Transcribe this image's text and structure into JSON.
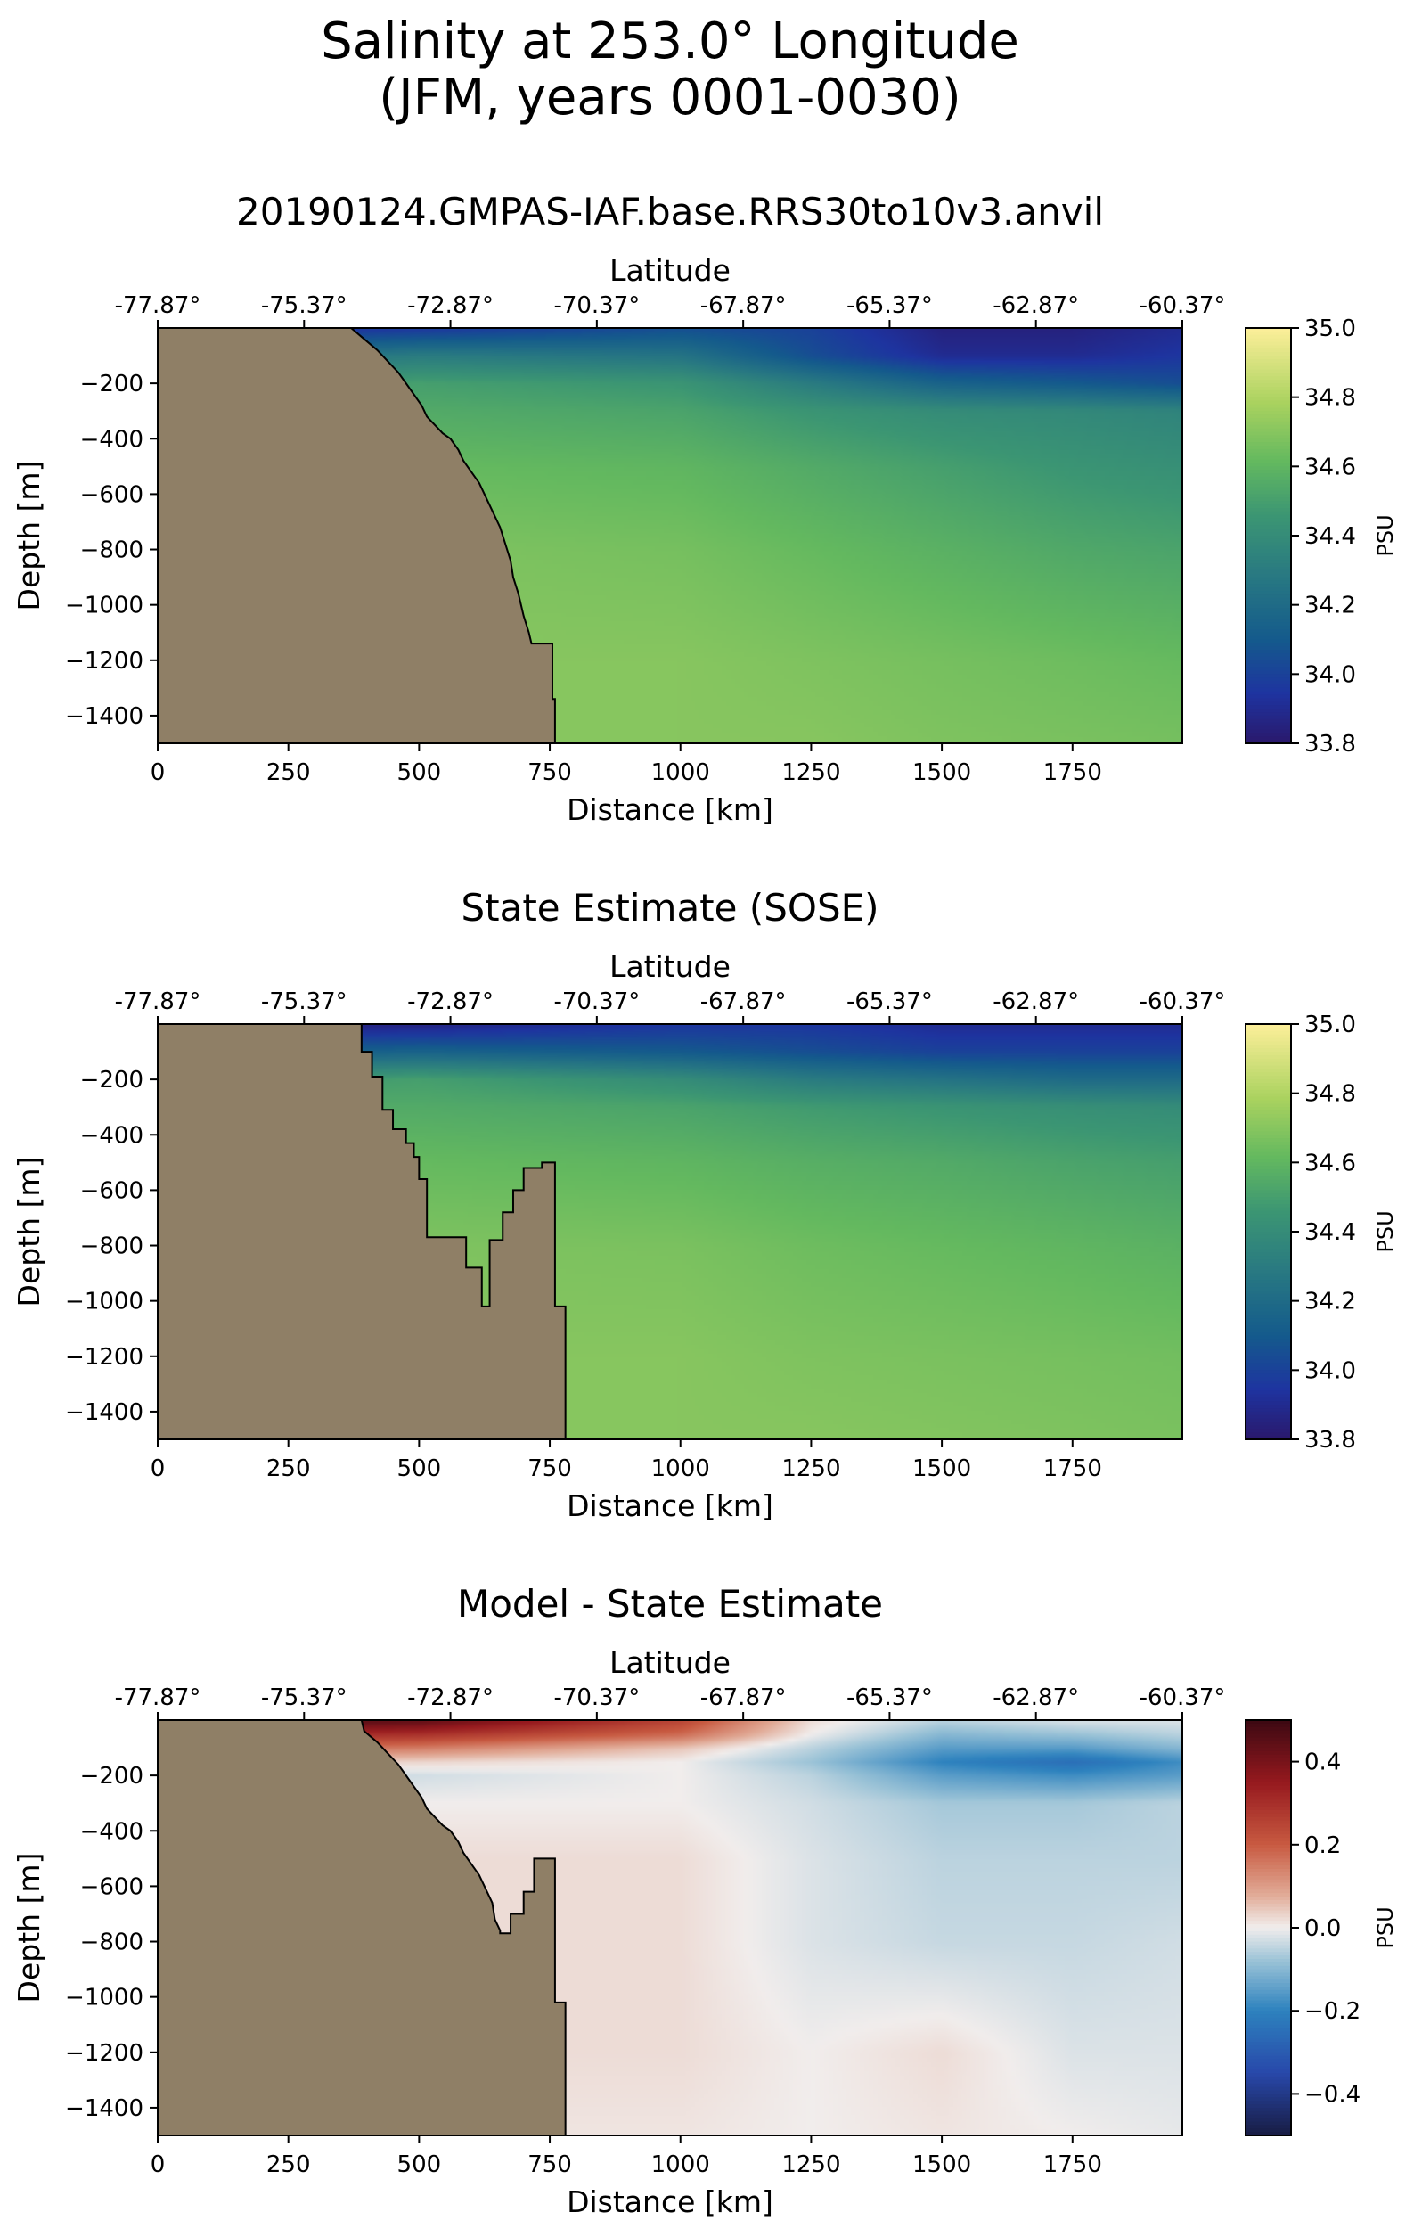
{
  "figure": {
    "title_line1": "Salinity at 253.0° Longitude",
    "title_line2": "(JFM, years 0001-0030)"
  },
  "chart_data": [
    {
      "type": "heatmap",
      "title": "20190124.GMPAS-IAF.base.RRS30to10v3.anvil",
      "xlabel": "Distance [km]",
      "ylabel": "Depth [m]",
      "top_xlabel": "Latitude",
      "xlim": [
        0,
        1960
      ],
      "ylim": [
        -1500,
        0
      ],
      "xticks": [
        0,
        250,
        500,
        750,
        1000,
        1250,
        1500,
        1750
      ],
      "yticks": [
        -200,
        -400,
        -600,
        -800,
        -1000,
        -1200,
        -1400
      ],
      "top_ticks": [
        {
          "km": 0,
          "label": "-77.87°"
        },
        {
          "km": 280,
          "label": "-75.37°"
        },
        {
          "km": 560,
          "label": "-72.87°"
        },
        {
          "km": 840,
          "label": "-70.37°"
        },
        {
          "km": 1120,
          "label": "-67.87°"
        },
        {
          "km": 1400,
          "label": "-65.37°"
        },
        {
          "km": 1680,
          "label": "-62.87°"
        },
        {
          "km": 1960,
          "label": "-60.37°"
        }
      ],
      "colorbar": {
        "label": "PSU",
        "colormap": "haline",
        "vmin": 33.8,
        "vmax": 35.0,
        "ticks": [
          33.8,
          34.0,
          34.2,
          34.4,
          34.6,
          34.8,
          35.0
        ],
        "tick_labels": [
          "33.8",
          "34.0",
          "34.2",
          "34.4",
          "34.6",
          "34.8",
          "35.0"
        ]
      },
      "land_color": "#8f7f66",
      "bathymetry_km_depth": [
        [
          370,
          0
        ],
        [
          395,
          -40
        ],
        [
          420,
          -80
        ],
        [
          440,
          -120
        ],
        [
          460,
          -160
        ],
        [
          475,
          -200
        ],
        [
          490,
          -240
        ],
        [
          505,
          -280
        ],
        [
          515,
          -320
        ],
        [
          525,
          -340
        ],
        [
          535,
          -360
        ],
        [
          545,
          -380
        ],
        [
          560,
          -400
        ],
        [
          575,
          -440
        ],
        [
          585,
          -480
        ],
        [
          600,
          -520
        ],
        [
          615,
          -560
        ],
        [
          625,
          -600
        ],
        [
          640,
          -660
        ],
        [
          655,
          -720
        ],
        [
          665,
          -780
        ],
        [
          675,
          -840
        ],
        [
          680,
          -900
        ],
        [
          690,
          -960
        ],
        [
          700,
          -1040
        ],
        [
          710,
          -1100
        ],
        [
          715,
          -1140
        ],
        [
          755,
          -1140
        ],
        [
          755,
          -1340
        ],
        [
          760,
          -1340
        ],
        [
          760,
          -1500
        ]
      ],
      "field_samples": {
        "x_km": [
          0,
          500,
          1000,
          1250,
          1500,
          1750,
          1960
        ],
        "depth_m": [
          0,
          -100,
          -200,
          -300,
          -500,
          -800,
          -1200,
          -1500
        ],
        "psu": [
          [
            33.9,
            33.95,
            34.05,
            34.0,
            33.85,
            33.85,
            33.9
          ],
          [
            34.2,
            34.3,
            34.25,
            34.05,
            33.9,
            33.9,
            33.95
          ],
          [
            34.45,
            34.5,
            34.45,
            34.3,
            34.15,
            34.1,
            34.05
          ],
          [
            34.55,
            34.55,
            34.52,
            34.45,
            34.4,
            34.38,
            34.35
          ],
          [
            34.62,
            34.62,
            34.6,
            34.55,
            34.5,
            34.45,
            34.42
          ],
          [
            34.68,
            34.68,
            34.66,
            34.62,
            34.58,
            34.54,
            34.52
          ],
          [
            34.7,
            34.7,
            34.7,
            34.68,
            34.66,
            34.64,
            34.62
          ],
          [
            34.7,
            34.7,
            34.7,
            34.7,
            34.68,
            34.67,
            34.66
          ]
        ]
      }
    },
    {
      "type": "heatmap",
      "title": "State Estimate (SOSE)",
      "xlabel": "Distance [km]",
      "ylabel": "Depth [m]",
      "top_xlabel": "Latitude",
      "xlim": [
        0,
        1960
      ],
      "ylim": [
        -1500,
        0
      ],
      "xticks": [
        0,
        250,
        500,
        750,
        1000,
        1250,
        1500,
        1750
      ],
      "yticks": [
        -200,
        -400,
        -600,
        -800,
        -1000,
        -1200,
        -1400
      ],
      "top_ticks": [
        {
          "km": 0,
          "label": "-77.87°"
        },
        {
          "km": 280,
          "label": "-75.37°"
        },
        {
          "km": 560,
          "label": "-72.87°"
        },
        {
          "km": 840,
          "label": "-70.37°"
        },
        {
          "km": 1120,
          "label": "-67.87°"
        },
        {
          "km": 1400,
          "label": "-65.37°"
        },
        {
          "km": 1680,
          "label": "-62.87°"
        },
        {
          "km": 1960,
          "label": "-60.37°"
        }
      ],
      "colorbar": {
        "label": "PSU",
        "colormap": "haline",
        "vmin": 33.8,
        "vmax": 35.0,
        "ticks": [
          33.8,
          34.0,
          34.2,
          34.4,
          34.6,
          34.8,
          35.0
        ],
        "tick_labels": [
          "33.8",
          "34.0",
          "34.2",
          "34.4",
          "34.6",
          "34.8",
          "35.0"
        ]
      },
      "land_color": "#8f7f66",
      "bathymetry_km_depth": [
        [
          390,
          0
        ],
        [
          390,
          -100
        ],
        [
          410,
          -100
        ],
        [
          410,
          -190
        ],
        [
          430,
          -190
        ],
        [
          430,
          -310
        ],
        [
          450,
          -310
        ],
        [
          450,
          -380
        ],
        [
          475,
          -380
        ],
        [
          475,
          -430
        ],
        [
          490,
          -430
        ],
        [
          490,
          -480
        ],
        [
          500,
          -480
        ],
        [
          500,
          -560
        ],
        [
          515,
          -560
        ],
        [
          515,
          -770
        ],
        [
          590,
          -770
        ],
        [
          590,
          -880
        ],
        [
          620,
          -880
        ],
        [
          620,
          -1020
        ],
        [
          635,
          -1020
        ],
        [
          635,
          -780
        ],
        [
          660,
          -780
        ],
        [
          660,
          -680
        ],
        [
          680,
          -680
        ],
        [
          680,
          -600
        ],
        [
          700,
          -600
        ],
        [
          700,
          -520
        ],
        [
          735,
          -520
        ],
        [
          735,
          -500
        ],
        [
          760,
          -500
        ],
        [
          760,
          -1020
        ],
        [
          780,
          -1020
        ],
        [
          780,
          -1500
        ]
      ],
      "field_samples": {
        "x_km": [
          0,
          500,
          1000,
          1250,
          1500,
          1750,
          1960
        ],
        "depth_m": [
          0,
          -100,
          -200,
          -300,
          -500,
          -800,
          -1200,
          -1500
        ],
        "psu": [
          [
            33.85,
            33.85,
            33.95,
            33.95,
            33.9,
            33.9,
            33.9
          ],
          [
            34.1,
            34.15,
            34.1,
            34.05,
            34.0,
            34.0,
            34.0
          ],
          [
            34.45,
            34.5,
            34.4,
            34.3,
            34.25,
            34.2,
            34.2
          ],
          [
            34.55,
            34.55,
            34.52,
            34.48,
            34.45,
            34.42,
            34.4
          ],
          [
            34.62,
            34.62,
            34.6,
            34.57,
            34.55,
            34.52,
            34.5
          ],
          [
            34.68,
            34.68,
            34.67,
            34.64,
            34.62,
            34.6,
            34.58
          ],
          [
            34.7,
            34.7,
            34.7,
            34.68,
            34.67,
            34.66,
            34.65
          ],
          [
            34.7,
            34.7,
            34.7,
            34.7,
            34.69,
            34.68,
            34.67
          ]
        ]
      }
    },
    {
      "type": "heatmap",
      "title": "Model - State Estimate",
      "xlabel": "Distance [km]",
      "ylabel": "Depth [m]",
      "top_xlabel": "Latitude",
      "xlim": [
        0,
        1960
      ],
      "ylim": [
        -1500,
        0
      ],
      "xticks": [
        0,
        250,
        500,
        750,
        1000,
        1250,
        1500,
        1750
      ],
      "yticks": [
        -200,
        -400,
        -600,
        -800,
        -1000,
        -1200,
        -1400
      ],
      "top_ticks": [
        {
          "km": 0,
          "label": "-77.87°"
        },
        {
          "km": 280,
          "label": "-75.37°"
        },
        {
          "km": 560,
          "label": "-72.87°"
        },
        {
          "km": 840,
          "label": "-70.37°"
        },
        {
          "km": 1120,
          "label": "-67.87°"
        },
        {
          "km": 1400,
          "label": "-65.37°"
        },
        {
          "km": 1680,
          "label": "-62.87°"
        },
        {
          "km": 1960,
          "label": "-60.37°"
        }
      ],
      "colorbar": {
        "label": "PSU",
        "colormap": "balance",
        "vmin": -0.5,
        "vmax": 0.5,
        "ticks": [
          0.4,
          0.2,
          0.0,
          -0.2,
          -0.4
        ],
        "tick_labels": [
          "0.4",
          "0.2",
          "0.0",
          "−0.2",
          "−0.4"
        ]
      },
      "land_color": "#8f7f66",
      "bathymetry_km_depth": [
        [
          390,
          0
        ],
        [
          395,
          -40
        ],
        [
          420,
          -80
        ],
        [
          440,
          -120
        ],
        [
          460,
          -160
        ],
        [
          475,
          -200
        ],
        [
          490,
          -240
        ],
        [
          505,
          -280
        ],
        [
          515,
          -320
        ],
        [
          525,
          -340
        ],
        [
          535,
          -360
        ],
        [
          545,
          -380
        ],
        [
          560,
          -400
        ],
        [
          575,
          -440
        ],
        [
          585,
          -480
        ],
        [
          600,
          -520
        ],
        [
          615,
          -560
        ],
        [
          625,
          -600
        ],
        [
          640,
          -660
        ],
        [
          645,
          -720
        ],
        [
          655,
          -760
        ],
        [
          655,
          -770
        ],
        [
          675,
          -770
        ],
        [
          675,
          -700
        ],
        [
          700,
          -700
        ],
        [
          700,
          -620
        ],
        [
          720,
          -620
        ],
        [
          720,
          -500
        ],
        [
          760,
          -500
        ],
        [
          760,
          -1020
        ],
        [
          780,
          -1020
        ],
        [
          780,
          -1500
        ]
      ],
      "field_samples": {
        "x_km": [
          0,
          500,
          1000,
          1250,
          1500,
          1750,
          1960
        ],
        "depth_m": [
          0,
          -50,
          -100,
          -150,
          -200,
          -300,
          -500,
          -800,
          -1200,
          -1500
        ],
        "psu": [
          [
            0.5,
            0.45,
            0.25,
            0.02,
            -0.05,
            -0.02,
            -0.02
          ],
          [
            0.35,
            0.3,
            0.18,
            0.0,
            -0.1,
            -0.08,
            -0.05
          ],
          [
            0.2,
            0.15,
            0.05,
            -0.05,
            -0.15,
            -0.15,
            -0.1
          ],
          [
            0.05,
            0.03,
            0.0,
            -0.08,
            -0.2,
            -0.25,
            -0.18
          ],
          [
            -0.05,
            -0.03,
            0.0,
            -0.05,
            -0.15,
            -0.18,
            -0.15
          ],
          [
            0.0,
            0.0,
            0.0,
            -0.03,
            -0.07,
            -0.07,
            -0.05
          ],
          [
            0.0,
            0.02,
            0.02,
            -0.02,
            -0.05,
            -0.05,
            -0.05
          ],
          [
            0.0,
            0.02,
            0.02,
            -0.02,
            -0.04,
            -0.04,
            -0.03
          ],
          [
            0.0,
            0.02,
            0.02,
            0.0,
            0.02,
            -0.02,
            -0.02
          ],
          [
            0.0,
            0.01,
            0.01,
            0.0,
            0.01,
            0.0,
            -0.01
          ]
        ]
      }
    }
  ]
}
